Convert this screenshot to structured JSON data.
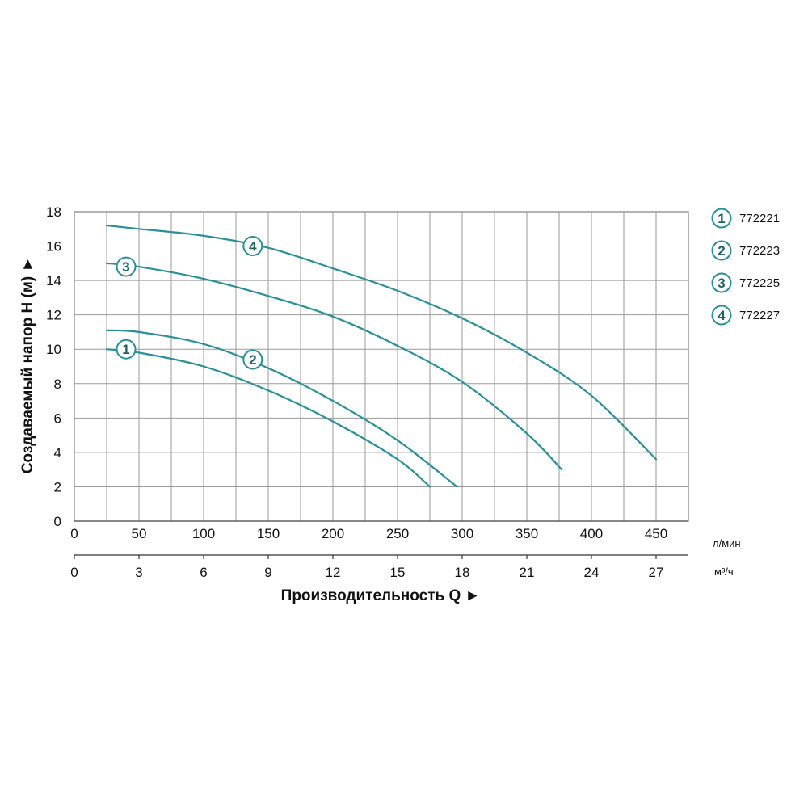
{
  "chart_data": {
    "type": "line",
    "title": "",
    "xlabel": "Производительность Q ►",
    "ylabel": "Создаваемый напор H (м) ►",
    "x_unit": "л/мин",
    "x2_unit": "м³/ч",
    "xlim": [
      0,
      475
    ],
    "ylim": [
      0,
      18
    ],
    "x_ticks": [
      0,
      50,
      100,
      150,
      200,
      250,
      300,
      350,
      400,
      450
    ],
    "x2_ticks": [
      0,
      3,
      6,
      9,
      12,
      15,
      18,
      21,
      24,
      27
    ],
    "y_ticks": [
      0,
      2,
      4,
      6,
      8,
      10,
      12,
      14,
      16,
      18
    ],
    "grid": true,
    "legend_position": "right",
    "color": "#2a8f96",
    "series": [
      {
        "name": "772221",
        "marker": "1",
        "label_at": [
          40,
          10
        ],
        "x": [
          25,
          50,
          100,
          150,
          200,
          250,
          275
        ],
        "y": [
          10.0,
          9.8,
          9.0,
          7.6,
          5.8,
          3.6,
          2.0
        ]
      },
      {
        "name": "772223",
        "marker": "2",
        "label_at": [
          138,
          9.4
        ],
        "x": [
          25,
          50,
          100,
          150,
          200,
          250,
          296
        ],
        "y": [
          11.1,
          11.0,
          10.3,
          8.9,
          7.0,
          4.7,
          2.0
        ]
      },
      {
        "name": "772225",
        "marker": "3",
        "label_at": [
          40,
          14.8
        ],
        "x": [
          25,
          50,
          100,
          150,
          200,
          250,
          300,
          350,
          377
        ],
        "y": [
          15.0,
          14.8,
          14.1,
          13.1,
          11.9,
          10.2,
          8.1,
          5.1,
          3.0
        ]
      },
      {
        "name": "772227",
        "marker": "4",
        "label_at": [
          138,
          16
        ],
        "x": [
          25,
          50,
          100,
          150,
          200,
          250,
          300,
          350,
          400,
          450
        ],
        "y": [
          17.2,
          17.0,
          16.6,
          15.9,
          14.7,
          13.4,
          11.8,
          9.8,
          7.3,
          3.6
        ]
      }
    ]
  }
}
